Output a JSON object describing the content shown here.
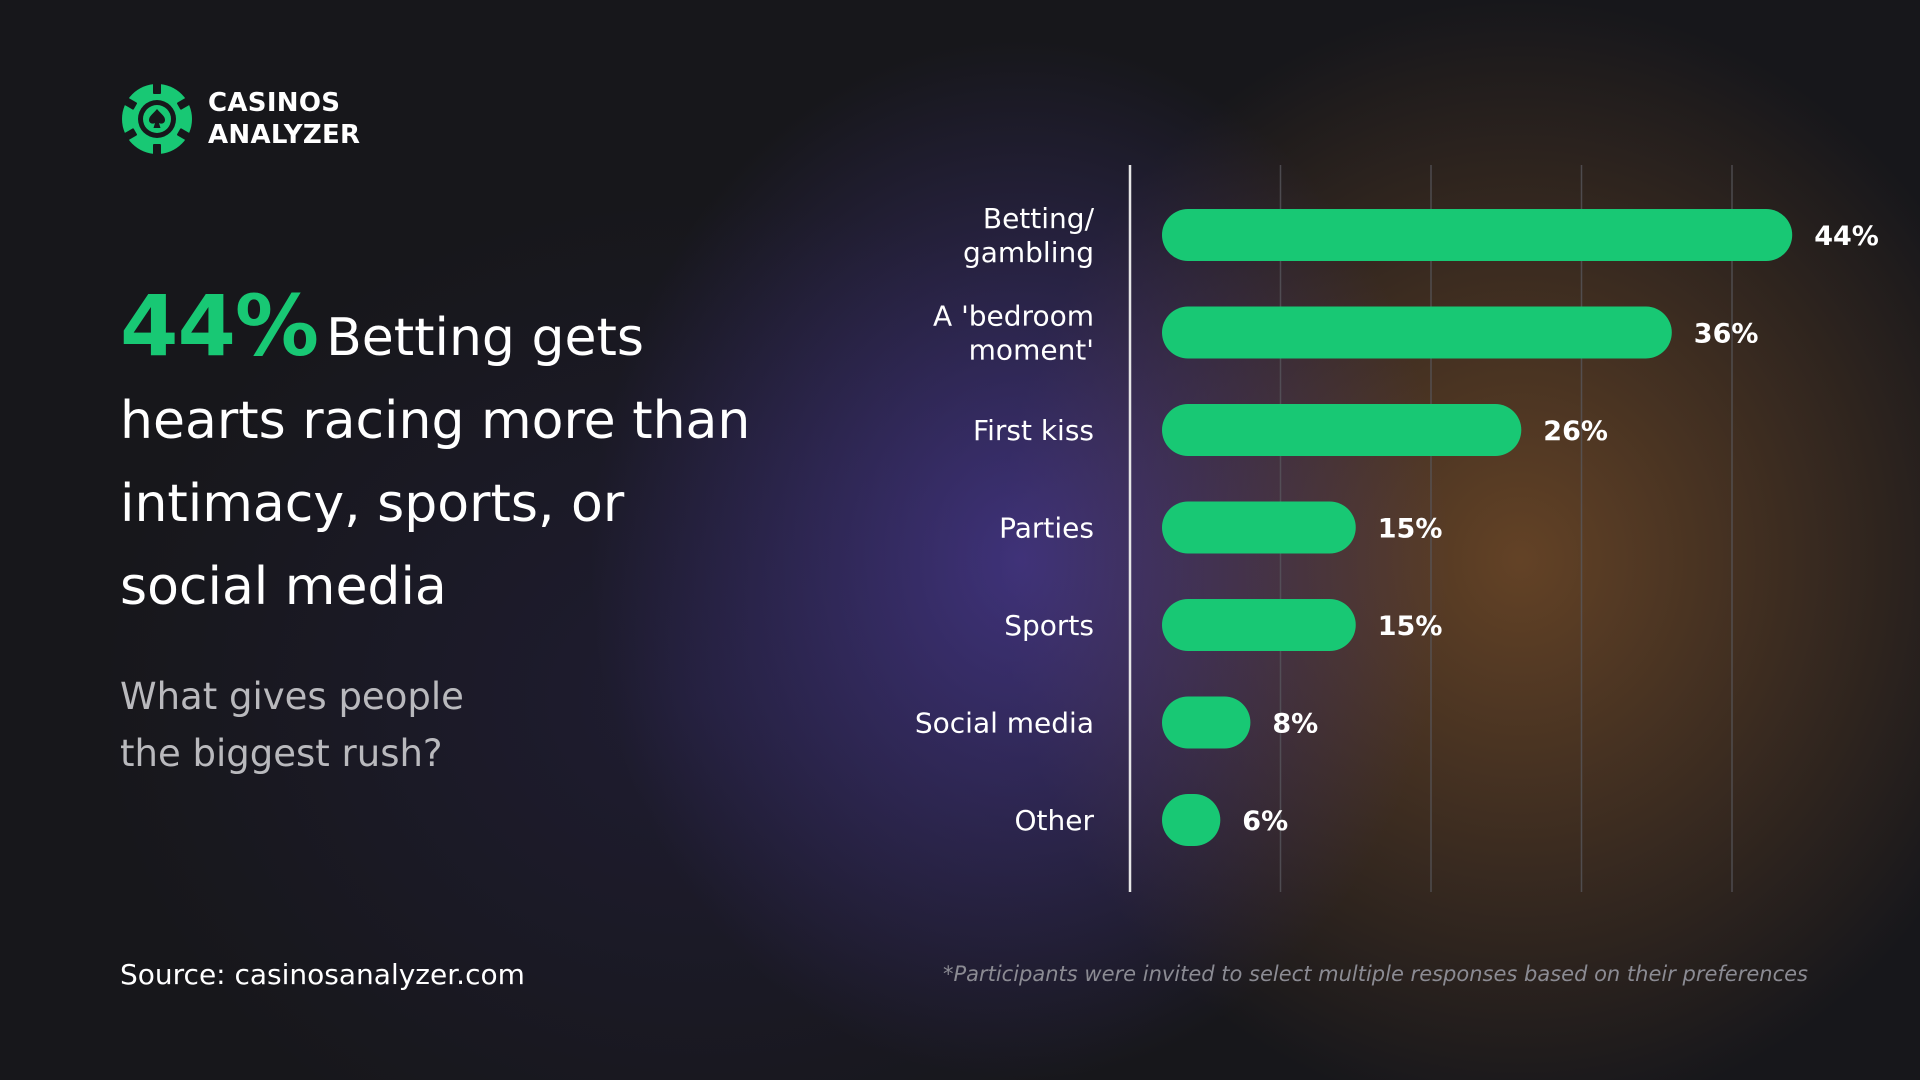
{
  "brand": {
    "line1": "CASINOS",
    "line2": "ANALYZER"
  },
  "headline": {
    "highlight": "44%",
    "text": "Betting gets hearts racing more than intimacy, sports, or social media"
  },
  "subtitle": {
    "line1": "What gives people",
    "line2": "the biggest rush?"
  },
  "source": "Source: casinosanalyzer.com",
  "footnote": "*Participants were invited to select multiple responses based on their preferences",
  "colors": {
    "accent": "#18c874",
    "background": "#17171b",
    "text": "#ffffff",
    "muted": "#b9b9bd",
    "gridline": "#58585e"
  },
  "chart_data": {
    "type": "bar",
    "orientation": "horizontal",
    "categories": [
      [
        "Betting/",
        "gambling"
      ],
      [
        "A 'bedroom",
        "moment'"
      ],
      [
        "First kiss"
      ],
      [
        "Parties"
      ],
      [
        "Sports"
      ],
      [
        "Social media"
      ],
      [
        "Other"
      ]
    ],
    "values": [
      44,
      36,
      26,
      15,
      15,
      8,
      6
    ],
    "value_labels": [
      "44%",
      "36%",
      "26%",
      "15%",
      "15%",
      "8%",
      "6%"
    ],
    "unit": "%",
    "xlim": [
      0,
      40
    ],
    "gridlines": [
      10,
      20,
      30,
      40
    ],
    "grid": true
  }
}
